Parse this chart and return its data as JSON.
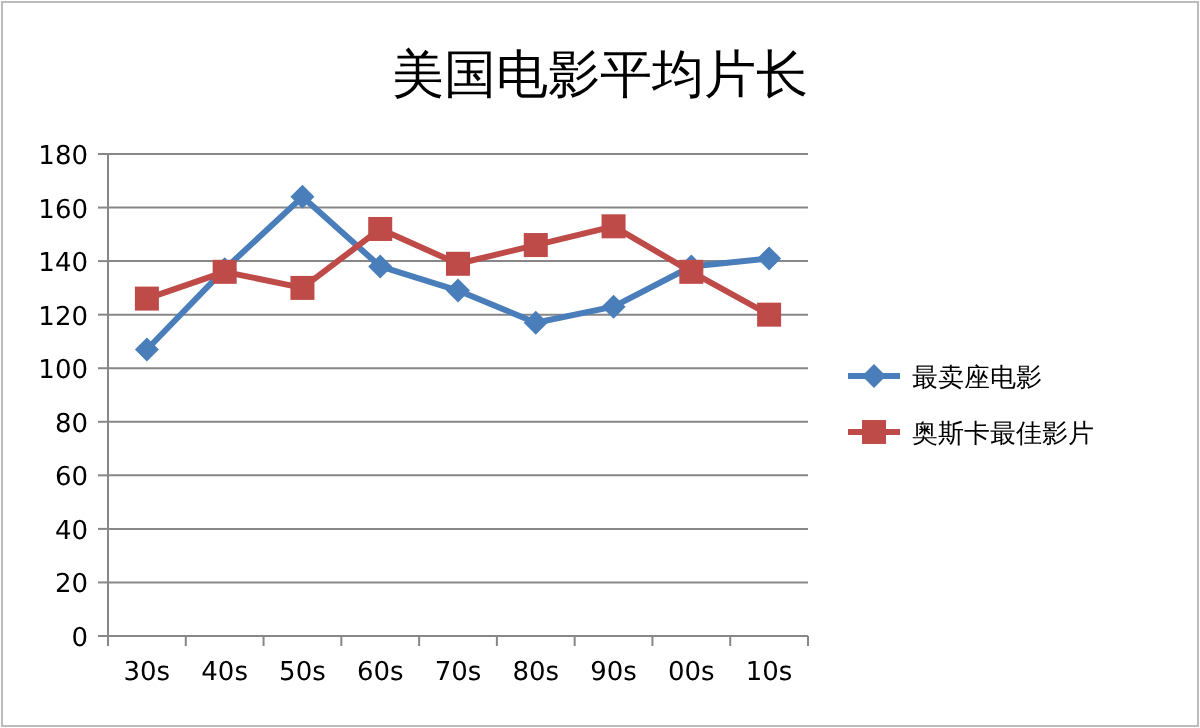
{
  "chart_data": {
    "type": "line",
    "title": "美国电影平均片长",
    "categories": [
      "30s",
      "40s",
      "50s",
      "60s",
      "70s",
      "80s",
      "90s",
      "00s",
      "10s"
    ],
    "series": [
      {
        "name": "最卖座电影",
        "color": "#4a7ebb",
        "marker": "diamond",
        "values": [
          107,
          137,
          164,
          138,
          129,
          117,
          123,
          138,
          141
        ]
      },
      {
        "name": "奥斯卡最佳影片",
        "color": "#be4b48",
        "marker": "square",
        "values": [
          126,
          136,
          130,
          152,
          139,
          146,
          153,
          136,
          120
        ]
      }
    ],
    "ylim": [
      0,
      180
    ],
    "yticks": [
      0,
      20,
      40,
      60,
      80,
      100,
      120,
      140,
      160,
      180
    ],
    "grid": "y",
    "legend": "right",
    "line_style": "solid"
  }
}
